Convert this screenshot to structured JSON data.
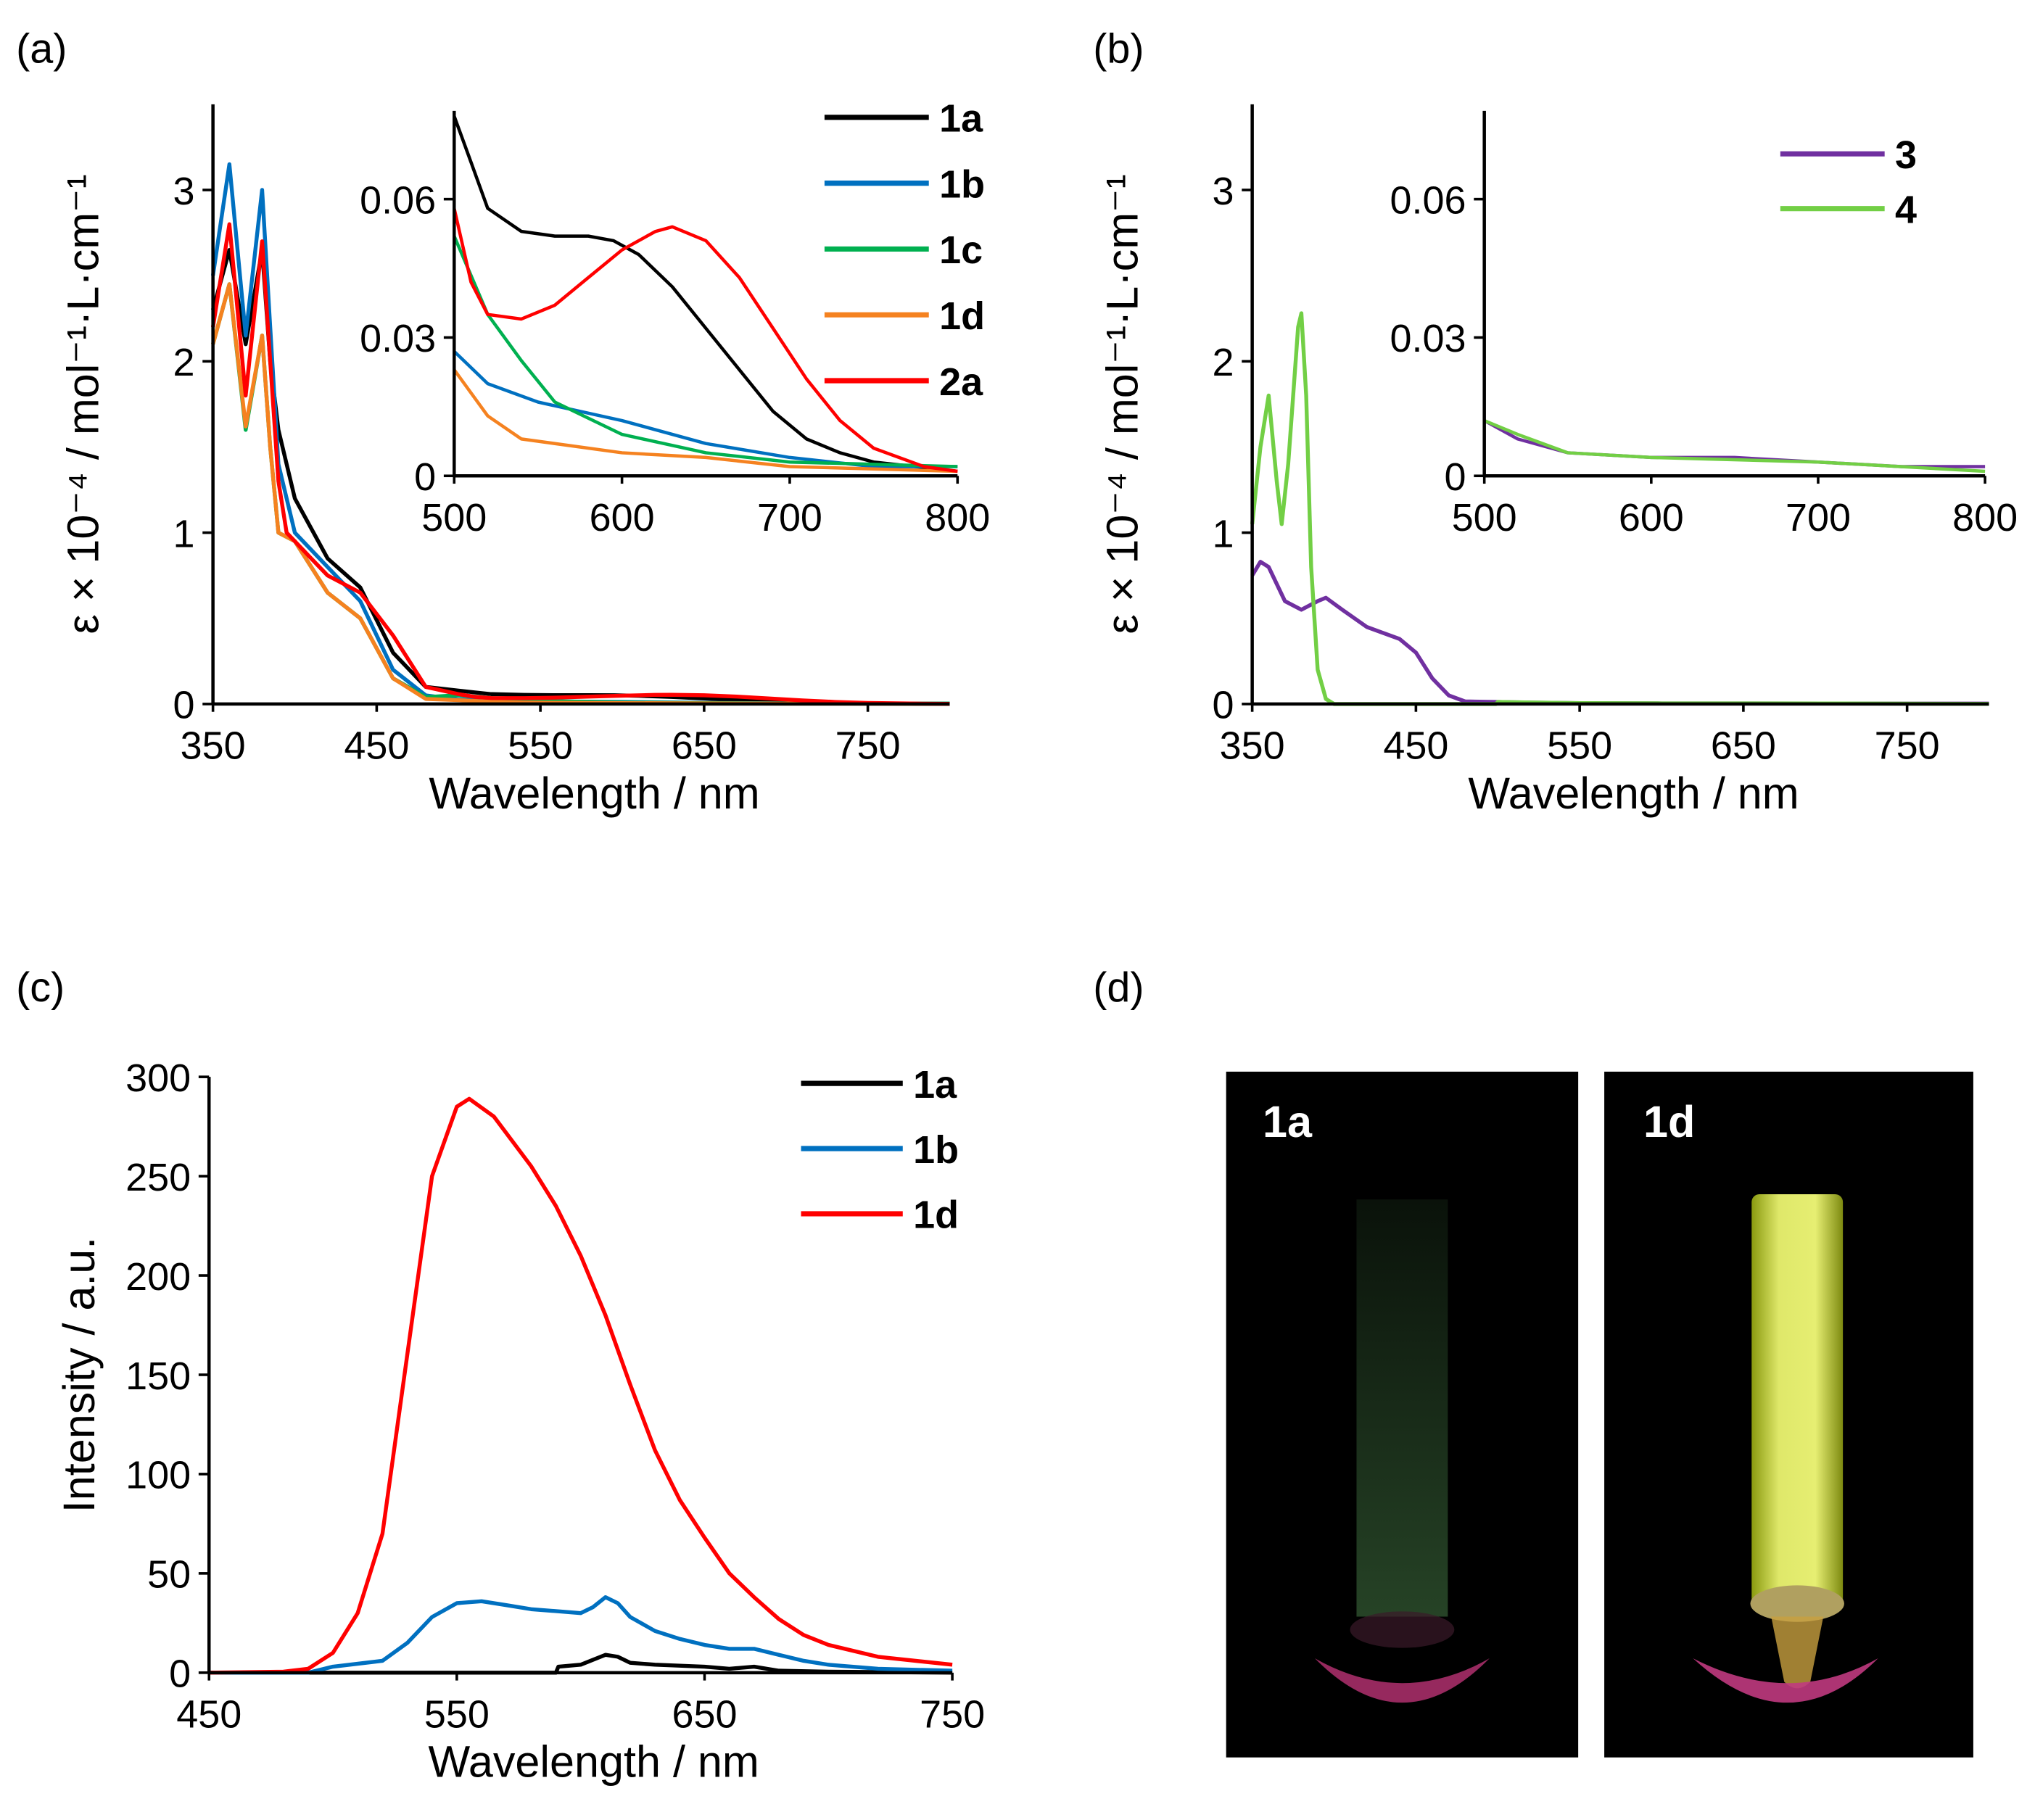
{
  "chart_data": [
    {
      "id": "a",
      "panel_label": "(a)",
      "type": "line",
      "xlabel": "Wavelength / nm",
      "ylabel": "ε × 10⁻⁴ / mol⁻¹·L·cm⁻¹",
      "xlim": [
        350,
        800
      ],
      "ylim": [
        0,
        3.5
      ],
      "xticks": [
        350,
        450,
        550,
        650,
        750
      ],
      "yticks": [
        0,
        1,
        2,
        3
      ],
      "legend_position": "top-right",
      "series": [
        {
          "name": "1a",
          "color": "#000000",
          "x": [
            350,
            360,
            370,
            380,
            385,
            390,
            400,
            420,
            440,
            460,
            480,
            500,
            510,
            520,
            540,
            560,
            580,
            595,
            610,
            630,
            650,
            670,
            690,
            710,
            730,
            750,
            800
          ],
          "y": [
            2.3,
            2.65,
            2.1,
            2.65,
            2.0,
            1.6,
            1.2,
            0.85,
            0.68,
            0.3,
            0.1,
            0.078,
            0.068,
            0.058,
            0.053,
            0.052,
            0.052,
            0.051,
            0.048,
            0.041,
            0.032,
            0.023,
            0.014,
            0.008,
            0.005,
            0.003,
            0.001
          ]
        },
        {
          "name": "1b",
          "color": "#0070C0",
          "x": [
            350,
            360,
            370,
            380,
            385,
            390,
            400,
            420,
            440,
            460,
            480,
            500,
            520,
            550,
            600,
            650,
            700,
            750,
            800
          ],
          "y": [
            2.5,
            3.15,
            2.15,
            3.0,
            2.2,
            1.4,
            1.0,
            0.8,
            0.6,
            0.2,
            0.05,
            0.027,
            0.02,
            0.016,
            0.012,
            0.007,
            0.004,
            0.002,
            0.002
          ]
        },
        {
          "name": "1c",
          "color": "#00B050",
          "x": [
            350,
            360,
            370,
            380,
            385,
            390,
            400,
            420,
            440,
            460,
            480,
            500,
            520,
            540,
            560,
            600,
            650,
            700,
            800
          ],
          "y": [
            2.1,
            2.45,
            1.6,
            2.15,
            1.5,
            1.0,
            0.95,
            0.65,
            0.5,
            0.15,
            0.04,
            0.052,
            0.035,
            0.025,
            0.016,
            0.009,
            0.005,
            0.003,
            0.002
          ]
        },
        {
          "name": "1d",
          "color": "#F58220",
          "x": [
            350,
            360,
            370,
            380,
            385,
            390,
            400,
            420,
            440,
            460,
            480,
            500,
            520,
            540,
            600,
            650,
            700,
            800
          ],
          "y": [
            2.1,
            2.45,
            1.62,
            2.15,
            1.5,
            1.0,
            0.95,
            0.65,
            0.5,
            0.15,
            0.03,
            0.023,
            0.013,
            0.008,
            0.005,
            0.004,
            0.002,
            0.001
          ]
        },
        {
          "name": "2a",
          "color": "#FF0000",
          "x": [
            350,
            360,
            370,
            380,
            385,
            390,
            395,
            410,
            420,
            440,
            460,
            480,
            500,
            510,
            520,
            540,
            560,
            580,
            600,
            620,
            630,
            650,
            670,
            690,
            710,
            730,
            750,
            780,
            800
          ],
          "y": [
            2.2,
            2.8,
            1.8,
            2.7,
            2.0,
            1.3,
            1.0,
            0.85,
            0.75,
            0.65,
            0.4,
            0.1,
            0.058,
            0.042,
            0.035,
            0.034,
            0.037,
            0.043,
            0.049,
            0.053,
            0.054,
            0.051,
            0.043,
            0.032,
            0.021,
            0.012,
            0.006,
            0.002,
            0.001
          ]
        }
      ],
      "inset": {
        "xlim": [
          500,
          800
        ],
        "ylim": [
          0,
          0.08
        ],
        "xticks": [
          500,
          600,
          700,
          800
        ],
        "yticks": [
          0,
          0.03,
          0.06
        ],
        "ytick_labels": [
          "0",
          "0.03",
          "0.06"
        ]
      }
    },
    {
      "id": "b",
      "panel_label": "(b)",
      "type": "line",
      "xlabel": "Wavelength / nm",
      "ylabel": "ε × 10⁻⁴ / mol⁻¹·L·cm⁻¹",
      "xlim": [
        350,
        800
      ],
      "ylim": [
        0,
        3.5
      ],
      "xticks": [
        350,
        450,
        550,
        650,
        750
      ],
      "yticks": [
        0,
        1,
        2,
        3
      ],
      "legend_position": "top-right",
      "series": [
        {
          "name": "3",
          "color": "#7030A0",
          "x": [
            350,
            355,
            360,
            370,
            380,
            390,
            395,
            405,
            420,
            440,
            450,
            460,
            470,
            480,
            500,
            520,
            550,
            600,
            650,
            700,
            750,
            800
          ],
          "y": [
            0.75,
            0.83,
            0.8,
            0.6,
            0.55,
            0.6,
            0.62,
            0.55,
            0.45,
            0.38,
            0.3,
            0.15,
            0.05,
            0.015,
            0.012,
            0.008,
            0.005,
            0.004,
            0.004,
            0.003,
            0.002,
            0.002
          ]
        },
        {
          "name": "4",
          "color": "#72CF45",
          "x": [
            350,
            355,
            360,
            365,
            368,
            372,
            378,
            380,
            383,
            386,
            390,
            395,
            400,
            499,
            500,
            520,
            550,
            600,
            700,
            800
          ],
          "y": [
            1.05,
            1.5,
            1.8,
            1.3,
            1.05,
            1.4,
            2.2,
            2.28,
            1.8,
            0.8,
            0.2,
            0.03,
            0.0,
            0.0,
            0.012,
            0.009,
            0.005,
            0.004,
            0.003,
            0.001
          ]
        }
      ],
      "inset": {
        "xlim": [
          500,
          800
        ],
        "ylim": [
          0,
          0.08
        ],
        "xticks": [
          500,
          600,
          700,
          800
        ],
        "yticks": [
          0,
          0.03,
          0.06
        ],
        "ytick_labels": [
          "0",
          "0.03",
          "0.06"
        ]
      }
    },
    {
      "id": "c",
      "panel_label": "(c)",
      "type": "line",
      "xlabel": "Wavelength / nm",
      "ylabel": "Intensity / a.u.",
      "xlim": [
        450,
        750
      ],
      "ylim": [
        0,
        300
      ],
      "xticks": [
        450,
        550,
        650,
        750
      ],
      "yticks": [
        0,
        50,
        100,
        150,
        200,
        250,
        300
      ],
      "legend_position": "top-right",
      "series": [
        {
          "name": "1a",
          "color": "#000000",
          "x": [
            450,
            590,
            591,
            600,
            610,
            615,
            620,
            630,
            650,
            660,
            670,
            680,
            700,
            750
          ],
          "y": [
            0,
            0,
            3,
            4,
            9,
            8,
            5,
            4,
            3,
            2,
            3,
            1,
            0.5,
            0
          ]
        },
        {
          "name": "1b",
          "color": "#0070C0",
          "x": [
            450,
            490,
            500,
            520,
            530,
            540,
            550,
            560,
            570,
            580,
            600,
            605,
            610,
            615,
            620,
            630,
            640,
            650,
            660,
            670,
            680,
            690,
            700,
            720,
            750
          ],
          "y": [
            0,
            0,
            3,
            6,
            15,
            28,
            35,
            36,
            34,
            32,
            30,
            33,
            38,
            35,
            28,
            21,
            17,
            14,
            12,
            12,
            9,
            6,
            4,
            2,
            1
          ]
        },
        {
          "name": "1d",
          "color": "#FF0000",
          "x": [
            450,
            480,
            490,
            500,
            510,
            520,
            530,
            540,
            550,
            555,
            565,
            580,
            590,
            600,
            610,
            620,
            630,
            640,
            650,
            660,
            670,
            680,
            690,
            700,
            720,
            750
          ],
          "y": [
            0,
            0.5,
            2,
            10,
            30,
            70,
            160,
            250,
            285,
            289,
            280,
            255,
            235,
            210,
            180,
            145,
            112,
            87,
            68,
            50,
            38,
            27,
            19,
            14,
            8,
            4
          ]
        }
      ]
    }
  ],
  "panel_d": {
    "panel_label": "(d)",
    "photos": [
      {
        "label": "1a"
      },
      {
        "label": "1d"
      }
    ]
  }
}
